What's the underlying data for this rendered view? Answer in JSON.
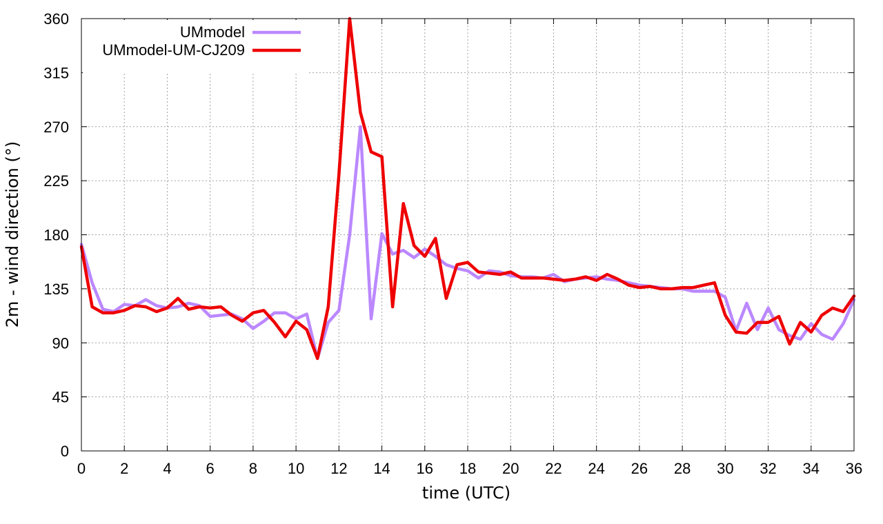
{
  "chart_data": {
    "type": "line",
    "xlabel": "time (UTC)",
    "ylabel": "2m - wind direction (°)",
    "xlim": [
      0,
      36
    ],
    "ylim": [
      0,
      360
    ],
    "xticks": [
      0,
      2,
      4,
      6,
      8,
      10,
      12,
      14,
      16,
      18,
      20,
      22,
      24,
      26,
      28,
      30,
      32,
      34,
      36
    ],
    "yticks": [
      0,
      45,
      90,
      135,
      180,
      225,
      270,
      315,
      360
    ],
    "grid": true,
    "legend_position": "top-left",
    "x": [
      0,
      0.5,
      1,
      1.5,
      2,
      2.5,
      3,
      3.5,
      4,
      4.5,
      5,
      5.5,
      6,
      6.5,
      7,
      7.5,
      8,
      8.5,
      9,
      9.5,
      10,
      10.5,
      11,
      11.5,
      12,
      12.5,
      13,
      13.5,
      14,
      14.5,
      15,
      15.5,
      16,
      16.5,
      17,
      17.5,
      18,
      18.5,
      19,
      19.5,
      20,
      20.5,
      21,
      21.5,
      22,
      22.5,
      23,
      23.5,
      24,
      24.5,
      25,
      25.5,
      26,
      26.5,
      27,
      27.5,
      28,
      28.5,
      29,
      29.5,
      30,
      30.5,
      31,
      31.5,
      32,
      32.5,
      33,
      33.5,
      34,
      34.5,
      35,
      35.5,
      36
    ],
    "series": [
      {
        "name": "UMmodel",
        "color": "#bb88ff",
        "values": [
          172,
          140,
          118,
          116,
          122,
          121,
          126,
          121,
          119,
          120,
          123,
          121,
          112,
          113,
          114,
          110,
          102,
          108,
          115,
          115,
          110,
          114,
          77,
          107,
          117,
          180,
          270,
          110,
          181,
          164,
          167,
          161,
          168,
          162,
          155,
          152,
          150,
          144,
          150,
          149,
          146,
          145,
          145,
          144,
          147,
          141,
          143,
          144,
          145,
          143,
          142,
          140,
          138,
          137,
          136,
          135,
          135,
          133,
          133,
          133,
          128,
          100,
          123,
          101,
          119,
          101,
          96,
          93,
          106,
          97,
          93,
          106,
          126
        ]
      },
      {
        "name": "UMmodel-UM-CJ209",
        "color": "#ee0000",
        "values": [
          170,
          120,
          115,
          115,
          117,
          121,
          120,
          116,
          119,
          127,
          118,
          120,
          119,
          120,
          113,
          108,
          115,
          117,
          107,
          95,
          108,
          101,
          77,
          120,
          230,
          360,
          282,
          249,
          245,
          120,
          206,
          171,
          162,
          177,
          127,
          155,
          157,
          149,
          148,
          147,
          149,
          144,
          144,
          144,
          143,
          142,
          143,
          145,
          142,
          147,
          143,
          138,
          136,
          137,
          135,
          135,
          136,
          136,
          138,
          140,
          113,
          99,
          98,
          107,
          107,
          112,
          89,
          107,
          99,
          113,
          119,
          116,
          129
        ]
      }
    ]
  }
}
